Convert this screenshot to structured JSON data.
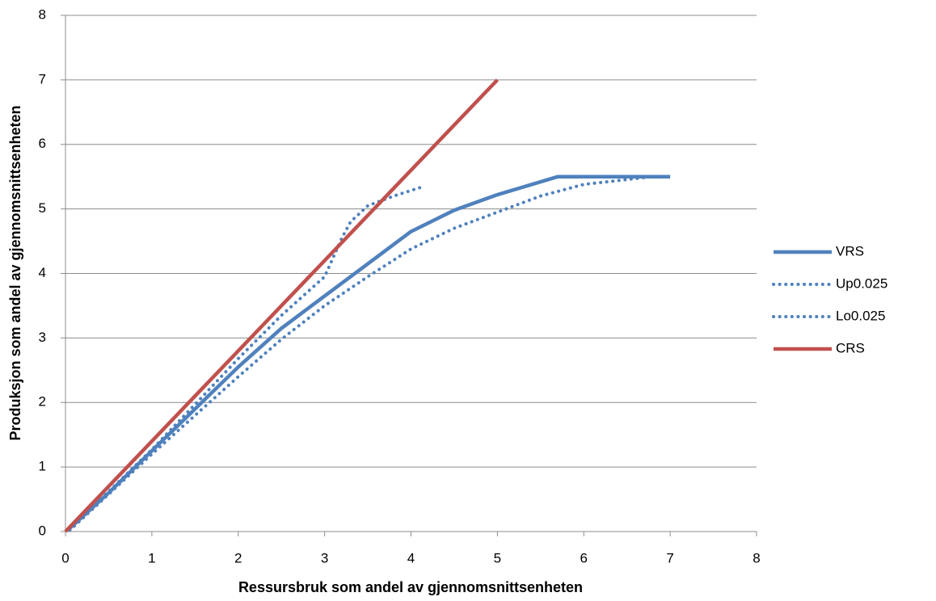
{
  "chart_data": {
    "type": "line",
    "xlabel": "Ressursbruk som andel av gjennomsnittsenheten",
    "ylabel": "Produksjon som andel av gjennomsnittsenheten",
    "xlim": [
      0,
      8
    ],
    "xticks": [
      0,
      1,
      2,
      3,
      4,
      5,
      6,
      7,
      8
    ],
    "ylim": [
      0,
      8
    ],
    "yticks": [
      0,
      1,
      2,
      3,
      4,
      5,
      6,
      7,
      8
    ],
    "grid": true,
    "legend": "right",
    "series": [
      {
        "name": "VRS",
        "color": "#4f81bd",
        "style": "solid",
        "x": [
          0.05,
          0.5,
          1,
          1.5,
          2,
          2.5,
          3,
          3.5,
          4,
          4.5,
          5,
          5.5,
          5.7,
          6,
          7
        ],
        "values": [
          0.05,
          0.6,
          1.25,
          1.9,
          2.55,
          3.15,
          3.65,
          4.15,
          4.65,
          4.98,
          5.22,
          5.42,
          5.5,
          5.5,
          5.5
        ]
      },
      {
        "name": "Up0.025",
        "color": "#4f81bd",
        "style": "dotted",
        "x": [
          0.05,
          0.5,
          1,
          1.5,
          2,
          2.5,
          3,
          3.2,
          3.3,
          3.5,
          3.8,
          4.15
        ],
        "values": [
          0.05,
          0.62,
          1.27,
          1.97,
          2.68,
          3.35,
          3.95,
          4.55,
          4.8,
          5.05,
          5.2,
          5.35
        ]
      },
      {
        "name": "Lo0.025",
        "color": "#4f81bd",
        "style": "dotted",
        "x": [
          0.05,
          1,
          2,
          2.5,
          3,
          3.5,
          4,
          4.5,
          5,
          5.5,
          6,
          6.8
        ],
        "values": [
          0.02,
          1.2,
          2.4,
          2.98,
          3.5,
          3.95,
          4.38,
          4.7,
          4.95,
          5.2,
          5.38,
          5.5
        ]
      },
      {
        "name": "CRS",
        "color": "#c0504d",
        "style": "solid",
        "x": [
          0,
          5
        ],
        "values": [
          0,
          7
        ]
      }
    ]
  }
}
